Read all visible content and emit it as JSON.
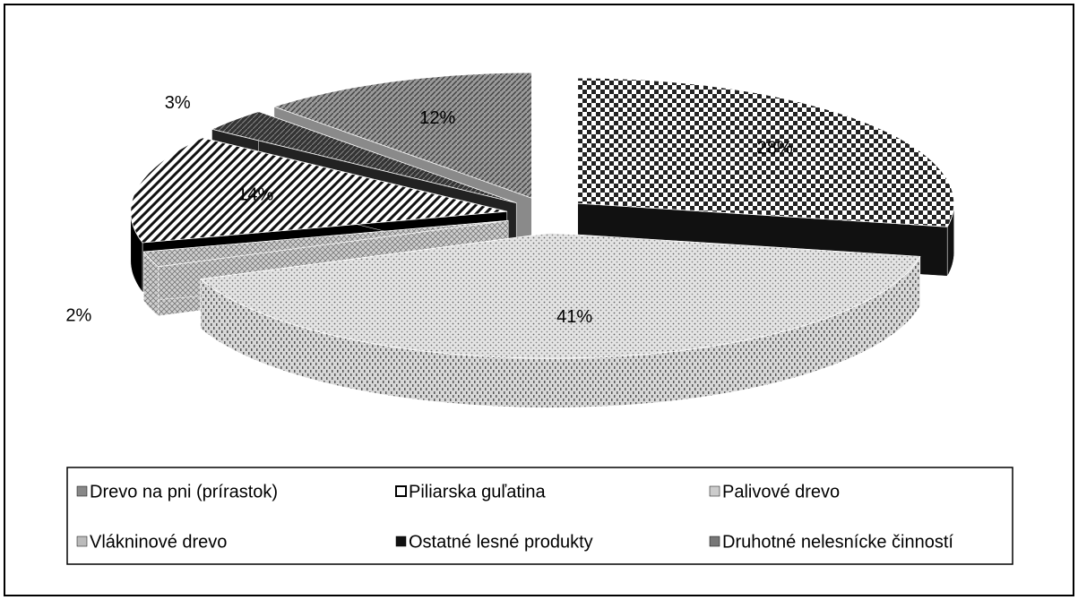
{
  "chart_data": {
    "type": "pie3d",
    "categories": [
      "Drevo na pni (prírastok)",
      "Piliarska guľatina",
      "Palivové drevo",
      "Vlákninové drevo",
      "Ostatné lesné produkty",
      "Druhotné nelesnícke činností"
    ],
    "values": [
      12,
      28,
      41,
      2,
      14,
      3
    ],
    "value_labels": [
      "12%",
      "28%",
      "41%",
      "2%",
      "14%",
      "3%"
    ],
    "legend": "bottom"
  }
}
